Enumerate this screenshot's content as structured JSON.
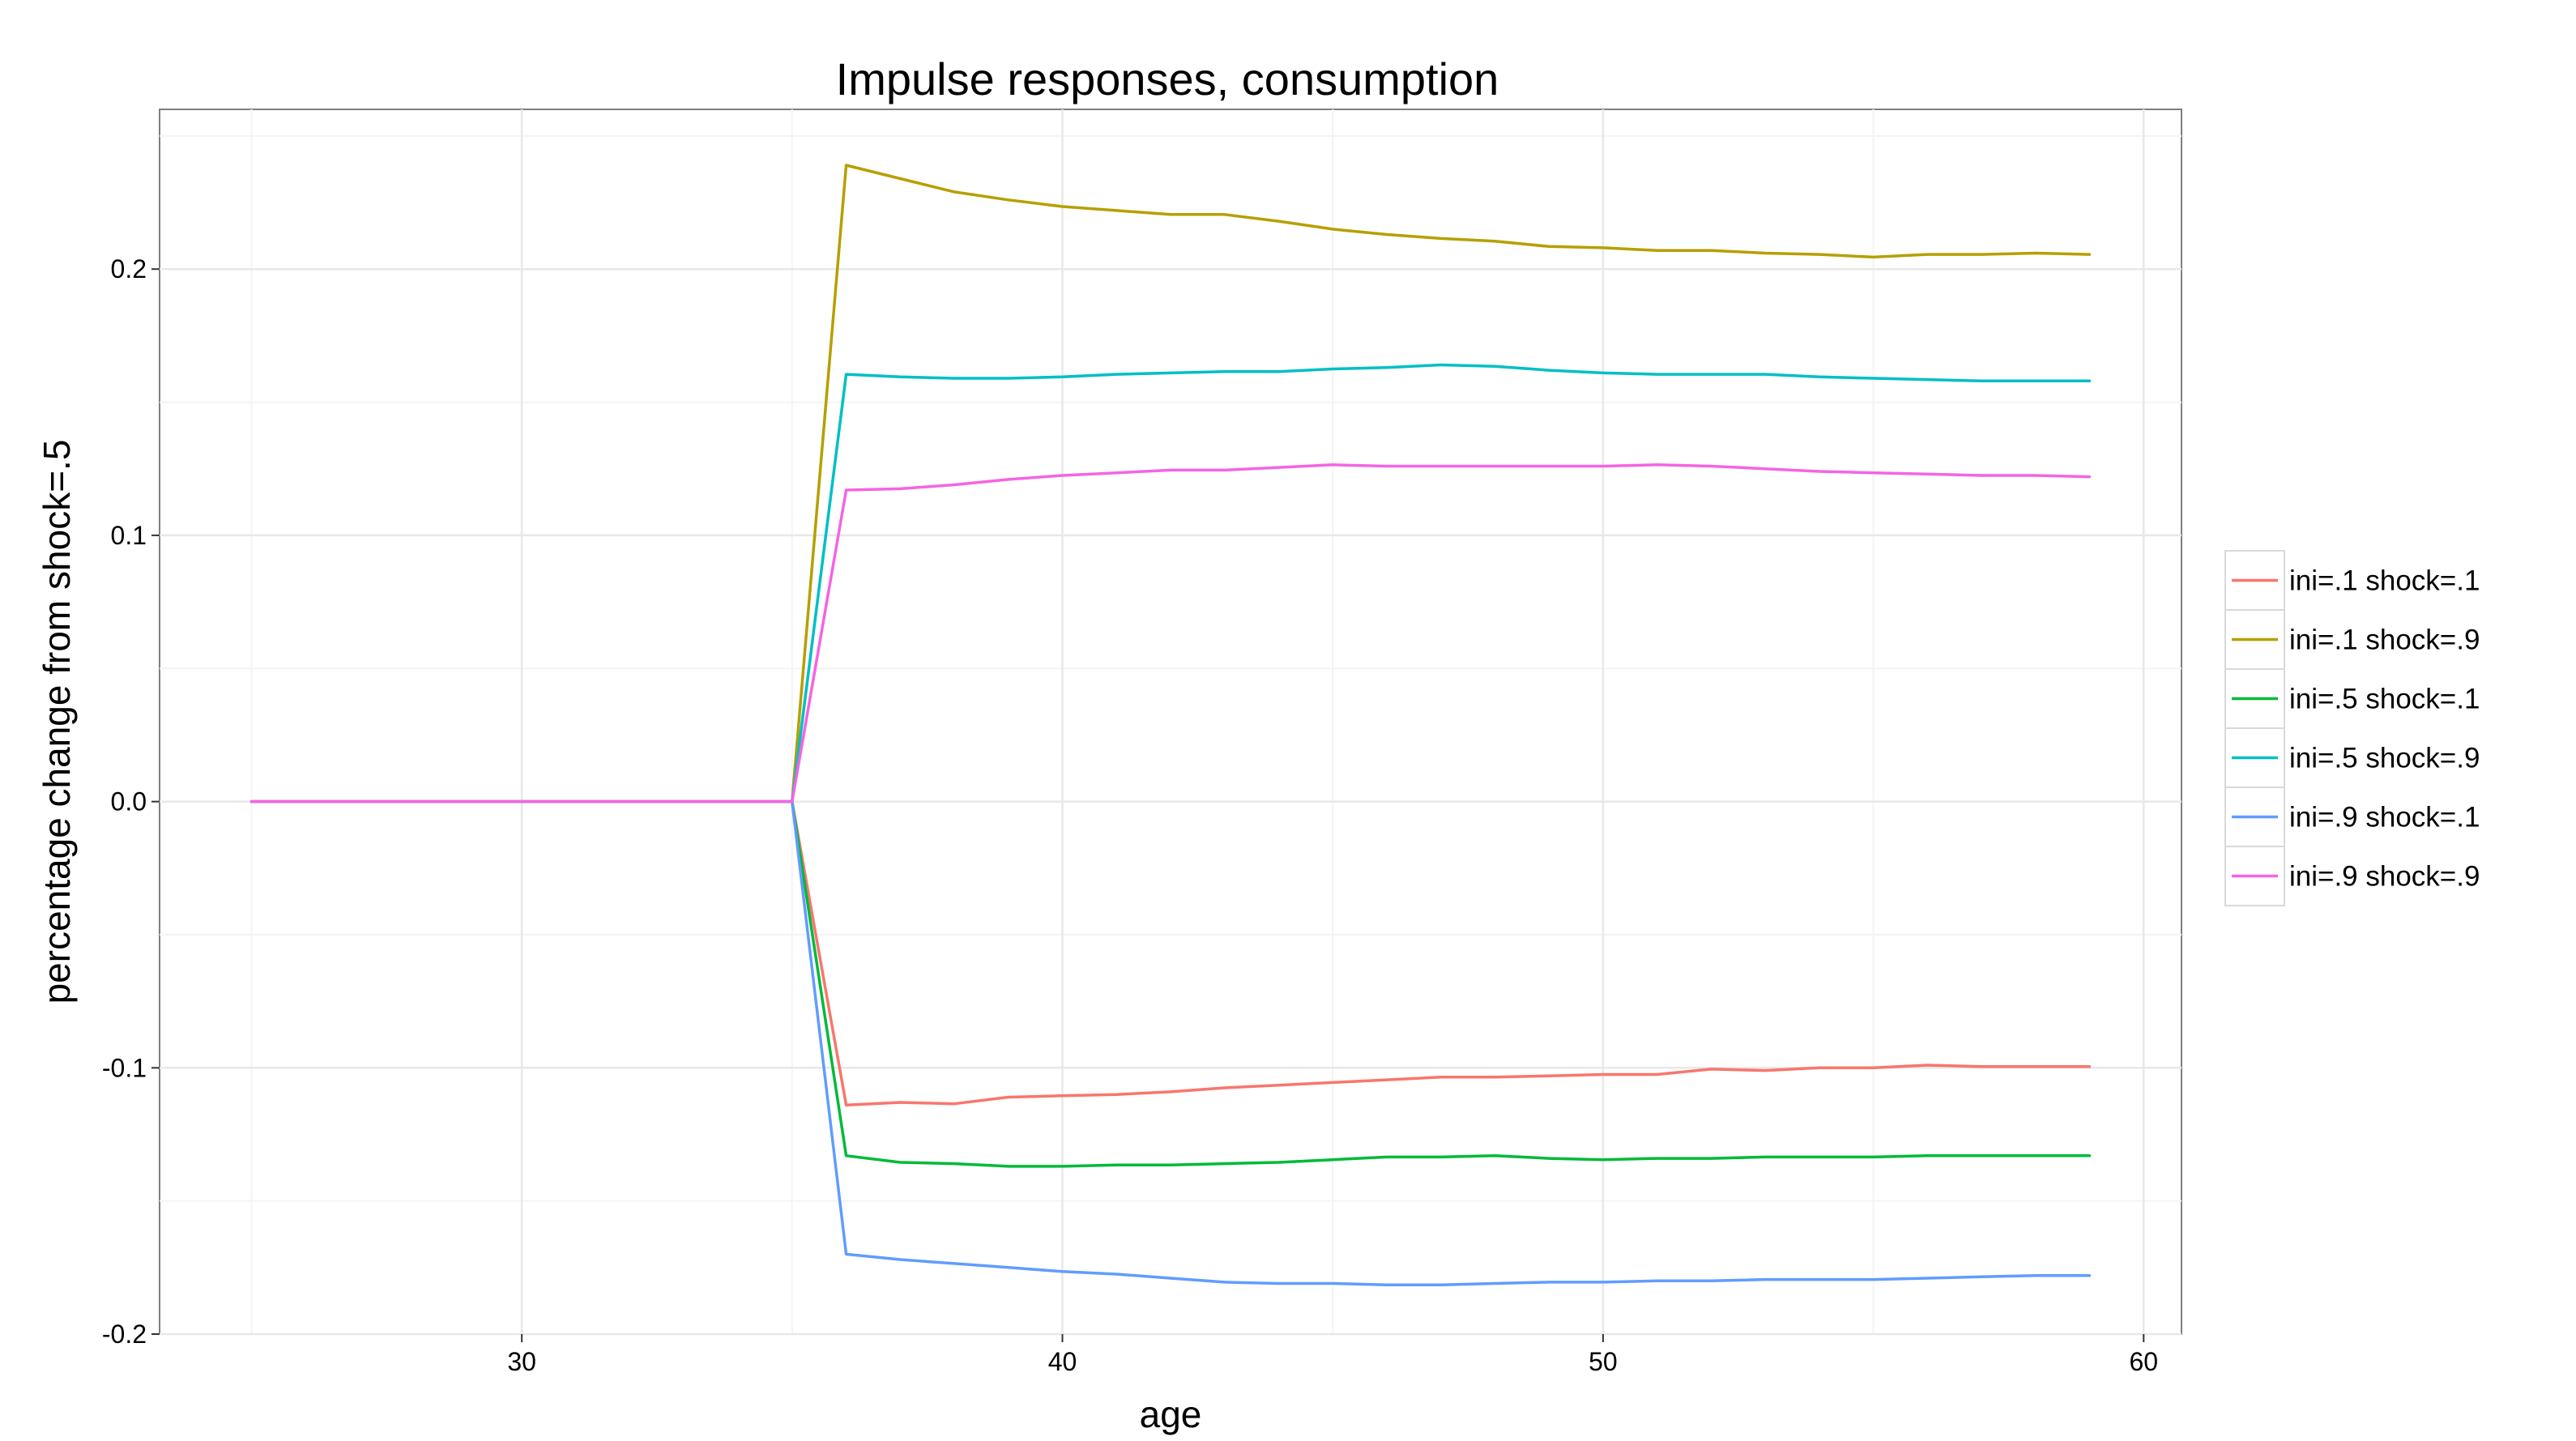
{
  "chart_data": {
    "type": "line",
    "title": "Impulse responses, consumption",
    "xlabel": "age",
    "ylabel": "percentage change from shock=.5",
    "xlim": [
      23.3,
      60.7
    ],
    "ylim": [
      -0.2,
      0.26
    ],
    "x_ticks": [
      30,
      40,
      50,
      60
    ],
    "x_tick_labels": [
      "30",
      "40",
      "50",
      "60"
    ],
    "y_ticks": [
      -0.2,
      -0.1,
      0.0,
      0.1,
      0.2
    ],
    "y_tick_labels": [
      "-0.2",
      "-0.1",
      "0.0",
      "0.1",
      "0.2"
    ],
    "grid": true,
    "legend_position": "right",
    "x": [
      25,
      26,
      27,
      28,
      29,
      30,
      31,
      32,
      33,
      34,
      35,
      36,
      37,
      38,
      39,
      40,
      41,
      42,
      43,
      44,
      45,
      46,
      47,
      48,
      49,
      50,
      51,
      52,
      53,
      54,
      55,
      56,
      57,
      58,
      59
    ],
    "series": [
      {
        "name": "ini=.1 shock=.1",
        "color": "#F8766D",
        "values": [
          0,
          0,
          0,
          0,
          0,
          0,
          0,
          0,
          0,
          0,
          0,
          -0.114,
          -0.113,
          -0.1135,
          -0.111,
          -0.1105,
          -0.11,
          -0.109,
          -0.1075,
          -0.1065,
          -0.1055,
          -0.1045,
          -0.1035,
          -0.1035,
          -0.103,
          -0.1025,
          -0.1025,
          -0.1005,
          -0.101,
          -0.1,
          -0.1,
          -0.099,
          -0.0995,
          -0.0995,
          -0.0995
        ]
      },
      {
        "name": "ini=.1 shock=.9",
        "color": "#B79F00",
        "values": [
          0,
          0,
          0,
          0,
          0,
          0,
          0,
          0,
          0,
          0,
          0,
          0.239,
          0.234,
          0.229,
          0.226,
          0.2235,
          0.222,
          0.2205,
          0.2205,
          0.218,
          0.215,
          0.213,
          0.2115,
          0.2105,
          0.2085,
          0.208,
          0.207,
          0.207,
          0.206,
          0.2055,
          0.2045,
          0.2055,
          0.2055,
          0.206,
          0.2055
        ]
      },
      {
        "name": "ini=.5 shock=.1",
        "color": "#00BA38",
        "values": [
          0,
          0,
          0,
          0,
          0,
          0,
          0,
          0,
          0,
          0,
          0,
          -0.133,
          -0.1355,
          -0.136,
          -0.137,
          -0.137,
          -0.1365,
          -0.1365,
          -0.136,
          -0.1355,
          -0.1345,
          -0.1335,
          -0.1335,
          -0.133,
          -0.134,
          -0.1345,
          -0.134,
          -0.134,
          -0.1335,
          -0.1335,
          -0.1335,
          -0.133,
          -0.133,
          -0.133,
          -0.133
        ]
      },
      {
        "name": "ini=.5 shock=.9",
        "color": "#00BFC4",
        "values": [
          0,
          0,
          0,
          0,
          0,
          0,
          0,
          0,
          0,
          0,
          0,
          0.1605,
          0.1595,
          0.159,
          0.159,
          0.1595,
          0.1605,
          0.161,
          0.1615,
          0.1615,
          0.1625,
          0.163,
          0.164,
          0.1635,
          0.162,
          0.161,
          0.1605,
          0.1605,
          0.1605,
          0.1595,
          0.159,
          0.1585,
          0.158,
          0.158,
          0.158
        ]
      },
      {
        "name": "ini=.9 shock=.1",
        "color": "#619CFF",
        "values": [
          0,
          0,
          0,
          0,
          0,
          0,
          0,
          0,
          0,
          0,
          0,
          -0.17,
          -0.172,
          -0.1735,
          -0.175,
          -0.1765,
          -0.1775,
          -0.179,
          -0.1805,
          -0.181,
          -0.181,
          -0.1815,
          -0.1815,
          -0.181,
          -0.1805,
          -0.1805,
          -0.18,
          -0.18,
          -0.1795,
          -0.1795,
          -0.1795,
          -0.179,
          -0.1785,
          -0.178,
          -0.178
        ]
      },
      {
        "name": "ini=.9 shock=.9",
        "color": "#F564E3",
        "values": [
          0,
          0,
          0,
          0,
          0,
          0,
          0,
          0,
          0,
          0,
          0,
          0.117,
          0.1175,
          0.119,
          0.121,
          0.1225,
          0.1235,
          0.1245,
          0.1245,
          0.1255,
          0.1265,
          0.126,
          0.126,
          0.126,
          0.126,
          0.126,
          0.1265,
          0.126,
          0.125,
          0.124,
          0.1235,
          0.123,
          0.1225,
          0.1225,
          0.122
        ]
      }
    ]
  }
}
